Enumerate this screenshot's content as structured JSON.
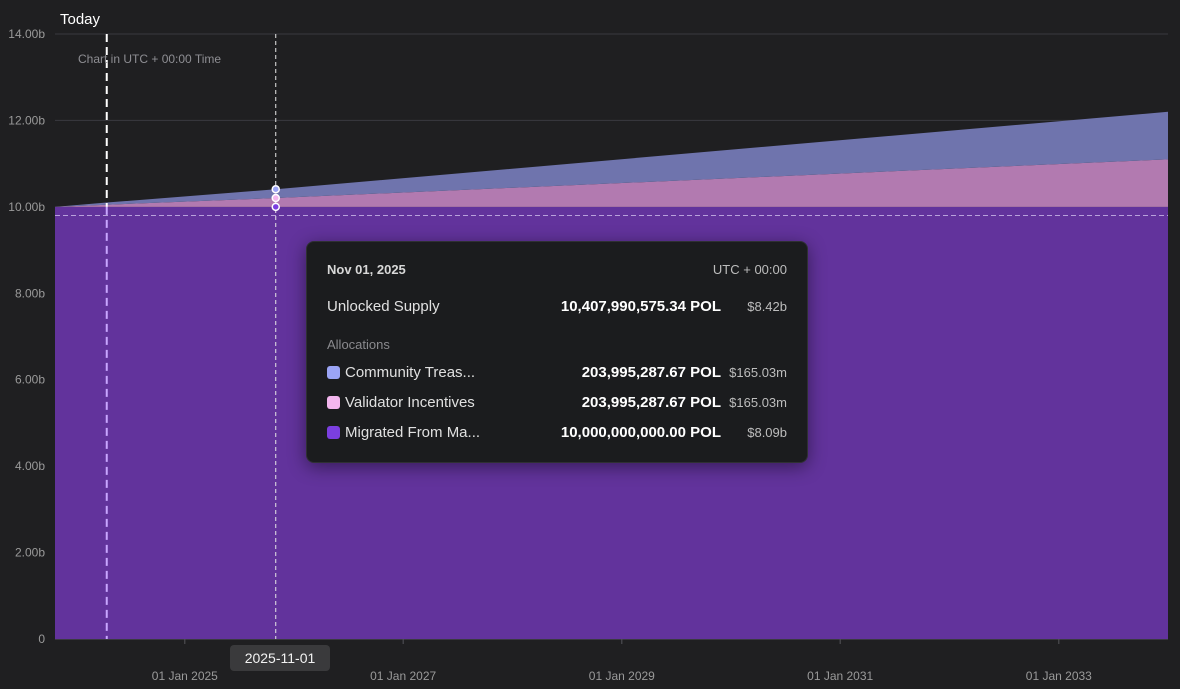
{
  "colors": {
    "background": "#1f1f21",
    "community_treasury": "#6f74ad",
    "validator_incentives": "#b27ab0",
    "migrated": "#62339c",
    "grid": "#3a3a40",
    "today_line": "#ffffff",
    "hover_line": "#e6e6e6"
  },
  "markers": {
    "today_label": "Today",
    "today_date": "2024-04-15",
    "hover_date": "2025-11-01",
    "hover_chip": "2025-11-01"
  },
  "chart_note": "Chart in UTC + 00:00 Time",
  "chart_data": {
    "type": "area",
    "stacked": true,
    "x": [
      "2023-10-25",
      "2024-04-15",
      "2025-11-01",
      "2034-01-01"
    ],
    "series": [
      {
        "name": "Migrated From Ma...",
        "color": "#62339c",
        "values": [
          10000000000,
          10000000000,
          10000000000,
          10000000000
        ]
      },
      {
        "name": "Validator Incentives",
        "color": "#b27ab0",
        "values": [
          0,
          50000000,
          203995287.67,
          1100000000
        ]
      },
      {
        "name": "Community Treas...",
        "color": "#6f74ad",
        "values": [
          0,
          50000000,
          203995287.67,
          1100000000
        ]
      }
    ],
    "ylim": [
      0,
      14000000000
    ],
    "xlim": [
      "2023-10-25",
      "2034-01-01"
    ],
    "yticks": [
      {
        "value": 0,
        "label": "0"
      },
      {
        "value": 2000000000,
        "label": "2.00b"
      },
      {
        "value": 4000000000,
        "label": "4.00b"
      },
      {
        "value": 6000000000,
        "label": "6.00b"
      },
      {
        "value": 8000000000,
        "label": "8.00b"
      },
      {
        "value": 10000000000,
        "label": "10.00b"
      },
      {
        "value": 12000000000,
        "label": "12.00b"
      },
      {
        "value": 14000000000,
        "label": "14.00b"
      }
    ],
    "xticks": [
      {
        "date": "2025-01-01",
        "label": "01 Jan 2025"
      },
      {
        "date": "2027-01-01",
        "label": "01 Jan 2027"
      },
      {
        "date": "2029-01-01",
        "label": "01 Jan 2029"
      },
      {
        "date": "2031-01-01",
        "label": "01 Jan 2031"
      },
      {
        "date": "2033-01-01",
        "label": "01 Jan 2033"
      }
    ],
    "grid": true,
    "legend": "tooltip"
  },
  "tooltip": {
    "date": "Nov 01, 2025",
    "timezone": "UTC + 00:00",
    "unlocked_label": "Unlocked Supply",
    "unlocked_value": "10,407,990,575.34 POL",
    "unlocked_usd": "$8.42b",
    "allocations_label": "Allocations",
    "rows": [
      {
        "name": "Community Treas...",
        "value": "203,995,287.67 POL",
        "usd": "$165.03m",
        "color": "#9ba4f5"
      },
      {
        "name": "Validator Incentives",
        "value": "203,995,287.67 POL",
        "usd": "$165.03m",
        "color": "#f3b6ee"
      },
      {
        "name": "Migrated From Ma...",
        "value": "10,000,000,000.00 POL",
        "usd": "$8.09b",
        "color": "#7b3fe0"
      }
    ]
  }
}
